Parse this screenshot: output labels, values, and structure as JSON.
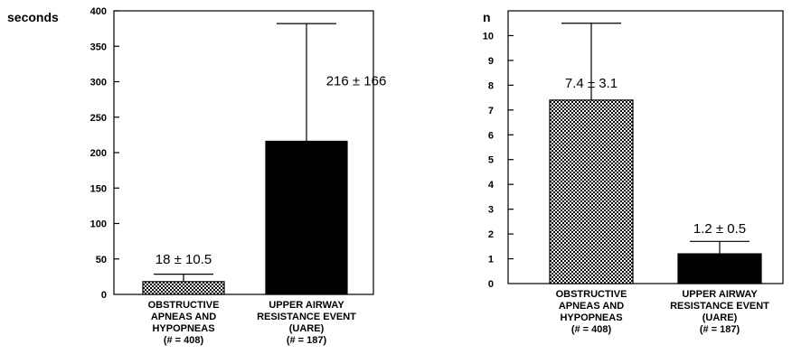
{
  "chart_data": [
    {
      "type": "bar",
      "title": "",
      "ylabel": "seconds",
      "xlabel": "",
      "ylim": [
        0,
        400
      ],
      "yticks": [
        0,
        50,
        100,
        150,
        200,
        250,
        300,
        350,
        400
      ],
      "grid": false,
      "categories": [
        [
          "OBSTRUCTIVE",
          "APNEAS AND",
          "HYPOPNEAS",
          "(# = 408)"
        ],
        [
          "UPPER AIRWAY",
          "RESISTANCE EVENT",
          "(UARE)",
          "(# = 187)"
        ]
      ],
      "values": [
        18,
        216
      ],
      "errors": [
        10.5,
        166
      ],
      "bar_labels": [
        "18 ± 10.5",
        "216 ± 166"
      ],
      "fills": [
        "checkered",
        "solid"
      ]
    },
    {
      "type": "bar",
      "title": "",
      "ylabel": "n",
      "xlabel": "",
      "ylim": [
        0,
        11
      ],
      "yticks": [
        0,
        1,
        2,
        3,
        4,
        5,
        6,
        7,
        8,
        9,
        10
      ],
      "grid": false,
      "categories": [
        [
          "OBSTRUCTIVE",
          "APNEAS AND",
          "HYPOPNEAS",
          "(# = 408)"
        ],
        [
          "UPPER AIRWAY",
          "RESISTANCE EVENT",
          "(UARE)",
          "(# = 187)"
        ]
      ],
      "values": [
        7.4,
        1.2
      ],
      "errors": [
        3.1,
        0.5
      ],
      "bar_labels": [
        "7.4 ± 3.1",
        "1.2 ± 0.5"
      ],
      "fills": [
        "checkered",
        "solid"
      ]
    }
  ]
}
